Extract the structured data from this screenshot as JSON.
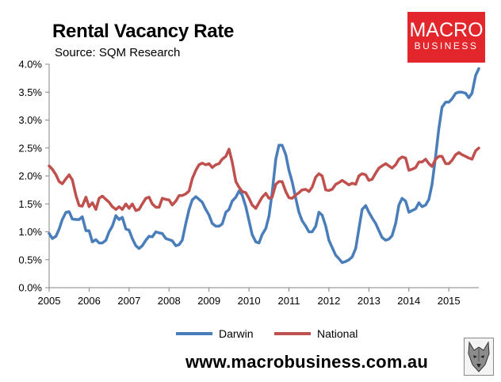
{
  "header": {
    "title": "Rental Vacancy Rate",
    "subtitle": "Source: SQM Research"
  },
  "logo": {
    "line1": "MACRO",
    "line2": "BUSINESS",
    "color": "#e2262b"
  },
  "footer": {
    "website": "www.macrobusiness.com.au"
  },
  "chart_data": {
    "type": "line",
    "title": "Rental Vacancy Rate",
    "subtitle": "Source: SQM Research",
    "xlabel": "",
    "ylabel": "",
    "xlim": [
      2005,
      2015.75
    ],
    "ylim": [
      0,
      4
    ],
    "y_ticks": [
      "0.0%",
      "0.5%",
      "1.0%",
      "1.5%",
      "2.0%",
      "2.5%",
      "3.0%",
      "3.5%",
      "4.0%"
    ],
    "x_ticks": [
      "2005",
      "2006",
      "2007",
      "2008",
      "2009",
      "2010",
      "2011",
      "2012",
      "2013",
      "2014",
      "2015"
    ],
    "grid": false,
    "legend_position": "bottom",
    "series": [
      {
        "name": "Darwin",
        "color": "#4a7ebb",
        "points": [
          [
            2005.0,
            0.97
          ],
          [
            2005.08,
            0.88
          ],
          [
            2005.17,
            0.92
          ],
          [
            2005.25,
            1.05
          ],
          [
            2005.33,
            1.22
          ],
          [
            2005.42,
            1.35
          ],
          [
            2005.5,
            1.36
          ],
          [
            2005.58,
            1.23
          ],
          [
            2005.67,
            1.22
          ],
          [
            2005.75,
            1.22
          ],
          [
            2005.83,
            1.27
          ],
          [
            2005.92,
            1.02
          ],
          [
            2006.0,
            1.02
          ],
          [
            2006.08,
            0.82
          ],
          [
            2006.17,
            0.86
          ],
          [
            2006.25,
            0.8
          ],
          [
            2006.33,
            0.8
          ],
          [
            2006.42,
            0.85
          ],
          [
            2006.5,
            1.0
          ],
          [
            2006.58,
            1.1
          ],
          [
            2006.67,
            1.29
          ],
          [
            2006.75,
            1.22
          ],
          [
            2006.83,
            1.26
          ],
          [
            2006.92,
            1.05
          ],
          [
            2007.0,
            1.03
          ],
          [
            2007.08,
            0.88
          ],
          [
            2007.17,
            0.75
          ],
          [
            2007.25,
            0.7
          ],
          [
            2007.33,
            0.75
          ],
          [
            2007.42,
            0.85
          ],
          [
            2007.5,
            0.92
          ],
          [
            2007.58,
            0.91
          ],
          [
            2007.67,
            1.0
          ],
          [
            2007.75,
            0.98
          ],
          [
            2007.83,
            0.97
          ],
          [
            2007.92,
            0.88
          ],
          [
            2008.0,
            0.86
          ],
          [
            2008.08,
            0.84
          ],
          [
            2008.17,
            0.75
          ],
          [
            2008.25,
            0.77
          ],
          [
            2008.33,
            0.85
          ],
          [
            2008.42,
            1.15
          ],
          [
            2008.5,
            1.4
          ],
          [
            2008.58,
            1.57
          ],
          [
            2008.67,
            1.63
          ],
          [
            2008.75,
            1.58
          ],
          [
            2008.83,
            1.53
          ],
          [
            2008.92,
            1.4
          ],
          [
            2009.0,
            1.3
          ],
          [
            2009.08,
            1.15
          ],
          [
            2009.17,
            1.1
          ],
          [
            2009.25,
            1.1
          ],
          [
            2009.33,
            1.14
          ],
          [
            2009.42,
            1.35
          ],
          [
            2009.5,
            1.4
          ],
          [
            2009.58,
            1.55
          ],
          [
            2009.67,
            1.62
          ],
          [
            2009.75,
            1.73
          ],
          [
            2009.83,
            1.66
          ],
          [
            2009.92,
            1.45
          ],
          [
            2010.0,
            1.2
          ],
          [
            2010.08,
            0.95
          ],
          [
            2010.17,
            0.82
          ],
          [
            2010.25,
            0.8
          ],
          [
            2010.33,
            0.95
          ],
          [
            2010.42,
            1.06
          ],
          [
            2010.5,
            1.28
          ],
          [
            2010.58,
            1.7
          ],
          [
            2010.67,
            2.3
          ],
          [
            2010.75,
            2.55
          ],
          [
            2010.83,
            2.55
          ],
          [
            2010.92,
            2.38
          ],
          [
            2011.0,
            2.1
          ],
          [
            2011.08,
            1.9
          ],
          [
            2011.17,
            1.6
          ],
          [
            2011.25,
            1.35
          ],
          [
            2011.33,
            1.2
          ],
          [
            2011.42,
            1.1
          ],
          [
            2011.5,
            1.0
          ],
          [
            2011.58,
            1.0
          ],
          [
            2011.67,
            1.1
          ],
          [
            2011.75,
            1.35
          ],
          [
            2011.83,
            1.3
          ],
          [
            2011.92,
            1.1
          ],
          [
            2012.0,
            0.85
          ],
          [
            2012.08,
            0.72
          ],
          [
            2012.17,
            0.58
          ],
          [
            2012.25,
            0.52
          ],
          [
            2012.33,
            0.45
          ],
          [
            2012.42,
            0.47
          ],
          [
            2012.5,
            0.5
          ],
          [
            2012.58,
            0.55
          ],
          [
            2012.67,
            0.7
          ],
          [
            2012.75,
            1.05
          ],
          [
            2012.83,
            1.4
          ],
          [
            2012.92,
            1.47
          ],
          [
            2013.0,
            1.35
          ],
          [
            2013.08,
            1.25
          ],
          [
            2013.17,
            1.15
          ],
          [
            2013.25,
            1.02
          ],
          [
            2013.33,
            0.9
          ],
          [
            2013.42,
            0.85
          ],
          [
            2013.5,
            0.87
          ],
          [
            2013.58,
            0.93
          ],
          [
            2013.67,
            1.15
          ],
          [
            2013.75,
            1.48
          ],
          [
            2013.83,
            1.6
          ],
          [
            2013.92,
            1.55
          ],
          [
            2014.0,
            1.35
          ],
          [
            2014.08,
            1.38
          ],
          [
            2014.17,
            1.41
          ],
          [
            2014.25,
            1.52
          ],
          [
            2014.33,
            1.45
          ],
          [
            2014.42,
            1.48
          ],
          [
            2014.5,
            1.58
          ],
          [
            2014.58,
            1.85
          ],
          [
            2014.67,
            2.35
          ],
          [
            2014.75,
            2.85
          ],
          [
            2014.83,
            3.23
          ],
          [
            2014.92,
            3.32
          ],
          [
            2015.0,
            3.32
          ],
          [
            2015.08,
            3.38
          ],
          [
            2015.17,
            3.48
          ],
          [
            2015.25,
            3.5
          ],
          [
            2015.33,
            3.5
          ],
          [
            2015.42,
            3.48
          ],
          [
            2015.5,
            3.4
          ],
          [
            2015.58,
            3.48
          ],
          [
            2015.67,
            3.8
          ],
          [
            2015.75,
            3.92
          ]
        ]
      },
      {
        "name": "National",
        "color": "#c0504d",
        "points": [
          [
            2005.0,
            2.18
          ],
          [
            2005.08,
            2.12
          ],
          [
            2005.17,
            2.02
          ],
          [
            2005.25,
            1.9
          ],
          [
            2005.33,
            1.86
          ],
          [
            2005.42,
            1.95
          ],
          [
            2005.5,
            2.02
          ],
          [
            2005.58,
            1.93
          ],
          [
            2005.67,
            1.65
          ],
          [
            2005.75,
            1.47
          ],
          [
            2005.83,
            1.46
          ],
          [
            2005.92,
            1.62
          ],
          [
            2006.0,
            1.45
          ],
          [
            2006.08,
            1.52
          ],
          [
            2006.17,
            1.4
          ],
          [
            2006.25,
            1.6
          ],
          [
            2006.33,
            1.64
          ],
          [
            2006.42,
            1.58
          ],
          [
            2006.5,
            1.53
          ],
          [
            2006.58,
            1.45
          ],
          [
            2006.67,
            1.4
          ],
          [
            2006.75,
            1.45
          ],
          [
            2006.83,
            1.4
          ],
          [
            2006.92,
            1.5
          ],
          [
            2007.0,
            1.42
          ],
          [
            2007.08,
            1.5
          ],
          [
            2007.17,
            1.38
          ],
          [
            2007.25,
            1.4
          ],
          [
            2007.33,
            1.5
          ],
          [
            2007.42,
            1.6
          ],
          [
            2007.5,
            1.62
          ],
          [
            2007.58,
            1.5
          ],
          [
            2007.67,
            1.44
          ],
          [
            2007.75,
            1.44
          ],
          [
            2007.83,
            1.6
          ],
          [
            2007.92,
            1.58
          ],
          [
            2008.0,
            1.57
          ],
          [
            2008.08,
            1.48
          ],
          [
            2008.17,
            1.55
          ],
          [
            2008.25,
            1.65
          ],
          [
            2008.33,
            1.65
          ],
          [
            2008.42,
            1.68
          ],
          [
            2008.5,
            1.73
          ],
          [
            2008.58,
            1.95
          ],
          [
            2008.67,
            2.1
          ],
          [
            2008.75,
            2.2
          ],
          [
            2008.83,
            2.23
          ],
          [
            2008.92,
            2.2
          ],
          [
            2009.0,
            2.22
          ],
          [
            2009.08,
            2.15
          ],
          [
            2009.17,
            2.2
          ],
          [
            2009.25,
            2.22
          ],
          [
            2009.33,
            2.3
          ],
          [
            2009.42,
            2.35
          ],
          [
            2009.5,
            2.48
          ],
          [
            2009.58,
            2.25
          ],
          [
            2009.67,
            1.9
          ],
          [
            2009.75,
            1.8
          ],
          [
            2009.83,
            1.72
          ],
          [
            2009.92,
            1.7
          ],
          [
            2010.0,
            1.6
          ],
          [
            2010.08,
            1.48
          ],
          [
            2010.17,
            1.42
          ],
          [
            2010.25,
            1.52
          ],
          [
            2010.33,
            1.62
          ],
          [
            2010.42,
            1.69
          ],
          [
            2010.5,
            1.6
          ],
          [
            2010.58,
            1.62
          ],
          [
            2010.67,
            1.85
          ],
          [
            2010.75,
            1.9
          ],
          [
            2010.83,
            1.9
          ],
          [
            2010.92,
            1.72
          ],
          [
            2011.0,
            1.61
          ],
          [
            2011.08,
            1.6
          ],
          [
            2011.17,
            1.66
          ],
          [
            2011.25,
            1.7
          ],
          [
            2011.33,
            1.75
          ],
          [
            2011.42,
            1.76
          ],
          [
            2011.5,
            1.72
          ],
          [
            2011.58,
            1.8
          ],
          [
            2011.67,
            1.98
          ],
          [
            2011.75,
            2.04
          ],
          [
            2011.83,
            2.0
          ],
          [
            2011.92,
            1.75
          ],
          [
            2012.0,
            1.74
          ],
          [
            2012.08,
            1.76
          ],
          [
            2012.17,
            1.85
          ],
          [
            2012.25,
            1.88
          ],
          [
            2012.33,
            1.92
          ],
          [
            2012.42,
            1.88
          ],
          [
            2012.5,
            1.84
          ],
          [
            2012.58,
            1.87
          ],
          [
            2012.67,
            1.85
          ],
          [
            2012.75,
            2.0
          ],
          [
            2012.83,
            2.04
          ],
          [
            2012.92,
            2.02
          ],
          [
            2013.0,
            1.92
          ],
          [
            2013.08,
            1.94
          ],
          [
            2013.17,
            2.05
          ],
          [
            2013.25,
            2.14
          ],
          [
            2013.33,
            2.18
          ],
          [
            2013.42,
            2.22
          ],
          [
            2013.5,
            2.18
          ],
          [
            2013.58,
            2.14
          ],
          [
            2013.67,
            2.2
          ],
          [
            2013.75,
            2.3
          ],
          [
            2013.83,
            2.34
          ],
          [
            2013.92,
            2.32
          ],
          [
            2014.0,
            2.1
          ],
          [
            2014.08,
            2.12
          ],
          [
            2014.17,
            2.15
          ],
          [
            2014.25,
            2.25
          ],
          [
            2014.33,
            2.25
          ],
          [
            2014.42,
            2.3
          ],
          [
            2014.5,
            2.22
          ],
          [
            2014.58,
            2.17
          ],
          [
            2014.67,
            2.3
          ],
          [
            2014.75,
            2.35
          ],
          [
            2014.83,
            2.35
          ],
          [
            2014.92,
            2.22
          ],
          [
            2015.0,
            2.22
          ],
          [
            2015.08,
            2.28
          ],
          [
            2015.17,
            2.38
          ],
          [
            2015.25,
            2.42
          ],
          [
            2015.33,
            2.38
          ],
          [
            2015.42,
            2.35
          ],
          [
            2015.5,
            2.32
          ],
          [
            2015.58,
            2.3
          ],
          [
            2015.67,
            2.45
          ],
          [
            2015.75,
            2.5
          ]
        ]
      }
    ]
  }
}
